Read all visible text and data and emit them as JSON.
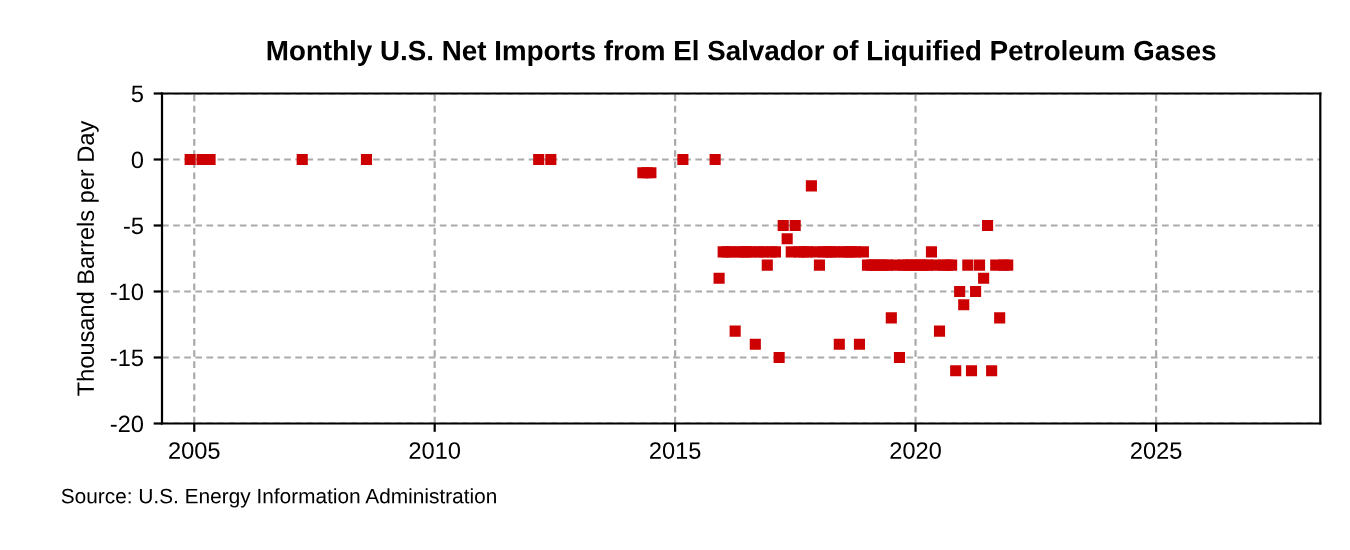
{
  "chart_data": {
    "type": "scatter",
    "title": "Monthly U.S. Net Imports from El Salvador of Liquified Petroleum Gases",
    "ylabel": "Thousand Barrels per Day",
    "annotations": [
      "Source: U.S. Energy Information Administration"
    ],
    "x": [
      "2004-12",
      "2005-03",
      "2005-05",
      "2007-04",
      "2008-08",
      "2012-03",
      "2012-06",
      "2014-05",
      "2014-06",
      "2014-07",
      "2015-03",
      "2015-11",
      "2015-12",
      "2016-01",
      "2016-02",
      "2016-03",
      "2016-04",
      "2016-05",
      "2016-06",
      "2016-07",
      "2016-08",
      "2016-09",
      "2016-10",
      "2016-11",
      "2016-12",
      "2017-01",
      "2017-02",
      "2017-03",
      "2017-04",
      "2017-05",
      "2017-06",
      "2017-07",
      "2017-08",
      "2017-09",
      "2017-10",
      "2017-11",
      "2017-12",
      "2018-01",
      "2018-02",
      "2018-03",
      "2018-04",
      "2018-05",
      "2018-06",
      "2018-07",
      "2018-08",
      "2018-09",
      "2018-10",
      "2018-11",
      "2018-12",
      "2019-01",
      "2019-02",
      "2019-03",
      "2019-04",
      "2019-05",
      "2019-06",
      "2019-07",
      "2019-08",
      "2019-09",
      "2019-10",
      "2019-11",
      "2019-12",
      "2020-01",
      "2020-02",
      "2020-03",
      "2020-04",
      "2020-05",
      "2020-06",
      "2020-07",
      "2020-08",
      "2020-09",
      "2020-10",
      "2020-11",
      "2020-12",
      "2021-01",
      "2021-02",
      "2021-03",
      "2021-04",
      "2021-05",
      "2021-06",
      "2021-07",
      "2021-08",
      "2021-09",
      "2021-10",
      "2021-11",
      "2021-12"
    ],
    "series": [
      {
        "color": "#cc0000",
        "values": [
          0,
          0,
          0,
          0,
          0,
          0,
          0,
          -1,
          -1,
          -1,
          0,
          0,
          -9,
          -7,
          -7,
          -7,
          -13,
          -7,
          -7,
          -7,
          -7,
          -14,
          -7,
          -7,
          -8,
          -7,
          -7,
          -15,
          -5,
          -6,
          -7,
          -5,
          -7,
          -7,
          -7,
          -2,
          -7,
          -8,
          -7,
          -7,
          -7,
          -7,
          -14,
          -7,
          -7,
          -7,
          -7,
          -14,
          -7,
          -8,
          -8,
          -8,
          -8,
          -8,
          -8,
          -12,
          -8,
          -15,
          -8,
          -8,
          -8,
          -8,
          -8,
          -8,
          -8,
          -7,
          -8,
          -13,
          -8,
          -8,
          -8,
          -16,
          -10,
          -11,
          -8,
          -16,
          -10,
          -8,
          -9,
          -5,
          -16,
          -8,
          -12,
          -8,
          -8
        ]
      }
    ],
    "marker": "square",
    "grid": true,
    "xlim": [
      "2004-05",
      "2028-06"
    ],
    "xticks": [
      {
        "value": "2005",
        "label": "2005"
      },
      {
        "value": "2010",
        "label": "2010"
      },
      {
        "value": "2015",
        "label": "2015"
      },
      {
        "value": "2020",
        "label": "2020"
      },
      {
        "value": "2025",
        "label": "2025"
      }
    ],
    "ylim": [
      -20,
      5
    ],
    "yticks": [
      -20,
      -15,
      -10,
      -5,
      0,
      5
    ]
  }
}
